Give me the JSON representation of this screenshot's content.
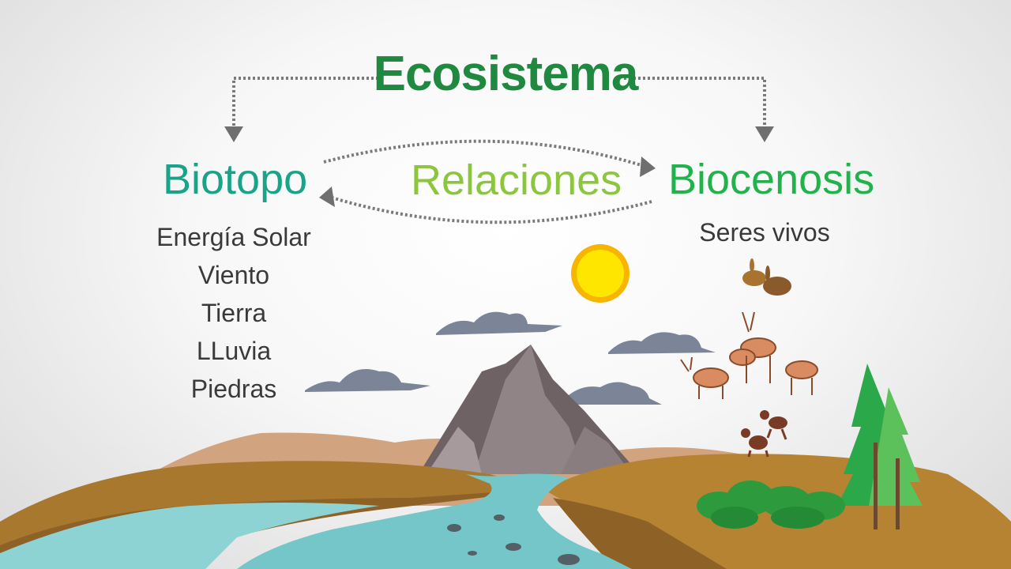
{
  "diagram": {
    "title": "Ecosistema",
    "left_node": {
      "label": "Biotopo",
      "items": [
        "Energía Solar",
        "Viento",
        "Tierra",
        "LLuvia",
        "Piedras"
      ]
    },
    "center_link": {
      "label": "Relaciones"
    },
    "right_node": {
      "label": "Biocenosis",
      "items": [
        "Seres vivos"
      ]
    }
  },
  "colors": {
    "title": "#1f8a3f",
    "biotopo": "#1aa389",
    "relaciones": "#8cc63f",
    "biocenosis": "#22b24c",
    "body_text": "#3a3a3a",
    "connector": "#7a7a7a"
  },
  "illustration": {
    "elements": [
      "sun-icon",
      "clouds",
      "mountain",
      "river",
      "rabbits",
      "deer",
      "monkeys",
      "trees",
      "bushes",
      "hills"
    ]
  }
}
